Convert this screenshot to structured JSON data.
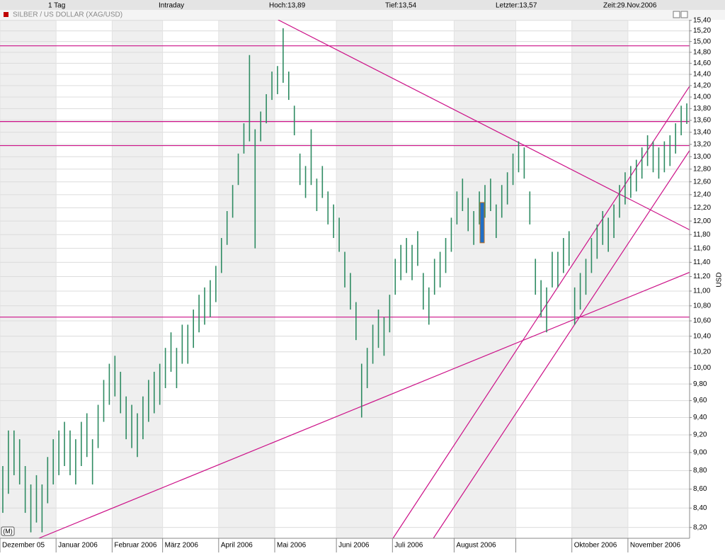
{
  "header": {
    "period": "1 Tag",
    "mode": "Intraday",
    "high": "Hoch:13,89",
    "low": "Tief:13,54",
    "last": "Letzter:13,57",
    "time": "Zeit:29.Nov.2006"
  },
  "chart_data": {
    "type": "ohlc",
    "title": "SILBER / US DOLLAR (XAG/USD)",
    "y_label": "USD",
    "corner_label": "(M)",
    "log_y": true,
    "grid": true,
    "color": "#2e8b62",
    "high": [
      8.85,
      9.25,
      9.25,
      9.15,
      8.85,
      8.65,
      8.75,
      8.65,
      8.95,
      9.15,
      9.25,
      9.35,
      9.25,
      9.15,
      9.35,
      9.45,
      9.15,
      9.55,
      9.85,
      10.05,
      10.15,
      9.95,
      9.65,
      9.55,
      9.45,
      9.65,
      9.85,
      9.95,
      10.05,
      10.25,
      10.45,
      10.25,
      10.55,
      10.55,
      10.75,
      10.95,
      11.05,
      11.15,
      11.35,
      11.75,
      12.15,
      12.55,
      13.05,
      13.55,
      14.75,
      13.45,
      13.75,
      14.05,
      14.45,
      14.55,
      15.25,
      14.45,
      13.85,
      13.05,
      12.85,
      13.45,
      12.65,
      12.85,
      12.45,
      12.25,
      12.05,
      11.55,
      11.25,
      10.85,
      10.05,
      10.25,
      10.55,
      10.75,
      10.65,
      10.95,
      11.45,
      11.65,
      11.75,
      11.65,
      11.85,
      11.25,
      11.05,
      11.45,
      11.55,
      11.75,
      12.05,
      12.45,
      12.65,
      12.35,
      12.15,
      12.45,
      12.55,
      12.65,
      12.25,
      12.55,
      12.75,
      13.05,
      13.25,
      13.15,
      12.45,
      11.45,
      11.15,
      11.05,
      11.55,
      11.55,
      11.75,
      11.85,
      11.05,
      11.25,
      11.45,
      11.75,
      11.95,
      12.15,
      12.05,
      12.25,
      12.55,
      12.75,
      12.85,
      12.95,
      13.15,
      13.35,
      13.25,
      13.15,
      13.25,
      13.35,
      13.55,
      13.85,
      13.89
    ],
    "low": [
      8.35,
      8.55,
      8.75,
      8.65,
      8.35,
      8.15,
      8.25,
      8.15,
      8.45,
      8.65,
      8.75,
      8.85,
      8.75,
      8.65,
      8.85,
      8.95,
      8.65,
      9.05,
      9.35,
      9.55,
      9.65,
      9.45,
      9.15,
      9.05,
      8.95,
      9.15,
      9.35,
      9.45,
      9.55,
      9.75,
      9.95,
      9.75,
      10.05,
      10.05,
      10.25,
      10.45,
      10.55,
      10.65,
      10.85,
      11.25,
      11.65,
      12.05,
      12.55,
      13.05,
      13.25,
      11.6,
      13.25,
      13.55,
      13.95,
      14.05,
      14.25,
      13.95,
      13.35,
      12.55,
      12.35,
      12.55,
      12.15,
      12.35,
      11.95,
      11.75,
      11.55,
      11.05,
      10.75,
      10.35,
      9.4,
      9.75,
      10.05,
      10.25,
      10.15,
      10.45,
      10.95,
      11.15,
      11.25,
      11.15,
      11.35,
      10.75,
      10.55,
      10.95,
      11.05,
      11.25,
      11.55,
      11.95,
      12.15,
      11.85,
      11.65,
      11.95,
      12.05,
      12.15,
      11.75,
      12.05,
      12.25,
      12.55,
      12.75,
      12.65,
      11.95,
      10.95,
      10.65,
      10.45,
      11.05,
      11.05,
      11.25,
      11.35,
      10.55,
      10.75,
      10.95,
      11.25,
      11.45,
      11.65,
      11.55,
      11.75,
      12.05,
      12.25,
      12.35,
      12.45,
      12.65,
      12.85,
      12.75,
      12.65,
      12.75,
      12.85,
      13.05,
      13.35,
      13.54
    ],
    "xlim": [
      0,
      123
    ],
    "xticks": [
      {
        "value": 0,
        "label": "Dezember 05"
      },
      {
        "value": 10,
        "label": "Januar 2006"
      },
      {
        "value": 20,
        "label": "Februar 2006"
      },
      {
        "value": 29,
        "label": "März 2006"
      },
      {
        "value": 39,
        "label": "April 2006"
      },
      {
        "value": 49,
        "label": "Mai 2006"
      },
      {
        "value": 60,
        "label": "Juni 2006"
      },
      {
        "value": 70,
        "label": "Juli 2006"
      },
      {
        "value": 81,
        "label": "August 2006"
      },
      {
        "value": 92,
        "label": null
      },
      {
        "value": 102,
        "label": "Oktober 2006"
      },
      {
        "value": 112,
        "label": "November 2006"
      }
    ],
    "ylim": [
      8.09,
      15.41
    ],
    "yticks": [
      {
        "value": 8.2,
        "label": "8,20"
      },
      {
        "value": 8.4,
        "label": "8,40"
      },
      {
        "value": 8.6,
        "label": "8,60"
      },
      {
        "value": 8.8,
        "label": "8,80"
      },
      {
        "value": 9,
        "label": "9,00"
      },
      {
        "value": 9.2,
        "label": "9,20"
      },
      {
        "value": 9.4,
        "label": "9,40"
      },
      {
        "value": 9.6,
        "label": "9,60"
      },
      {
        "value": 9.8,
        "label": "9,80"
      },
      {
        "value": 10,
        "label": "10,00"
      },
      {
        "value": 10.2,
        "label": "10,20"
      },
      {
        "value": 10.4,
        "label": "10,40"
      },
      {
        "value": 10.6,
        "label": "10,60"
      },
      {
        "value": 10.8,
        "label": "10,80"
      },
      {
        "value": 11,
        "label": "11,00"
      },
      {
        "value": 11.2,
        "label": "11,20"
      },
      {
        "value": 11.4,
        "label": "11,40"
      },
      {
        "value": 11.6,
        "label": "11,60"
      },
      {
        "value": 11.8,
        "label": "11,80"
      },
      {
        "value": 12,
        "label": "12,00"
      },
      {
        "value": 12.2,
        "label": "12,20"
      },
      {
        "value": 12.4,
        "label": "12,40"
      },
      {
        "value": 12.6,
        "label": "12,60"
      },
      {
        "value": 12.8,
        "label": "12,80"
      },
      {
        "value": 13,
        "label": "13,00"
      },
      {
        "value": 13.2,
        "label": "13,20"
      },
      {
        "value": 13.4,
        "label": "13,40"
      },
      {
        "value": 13.6,
        "label": "13,60"
      },
      {
        "value": 13.8,
        "label": "13,80"
      },
      {
        "value": 14,
        "label": "14,00"
      },
      {
        "value": 14.2,
        "label": "14,20"
      },
      {
        "value": 14.4,
        "label": "14,40"
      },
      {
        "value": 14.6,
        "label": "14,60"
      },
      {
        "value": 14.8,
        "label": "14,80"
      },
      {
        "value": 15,
        "label": "15,00"
      },
      {
        "value": 15.2,
        "label": "15,20"
      },
      {
        "value": 15.4,
        "label": "15,40"
      }
    ],
    "lines": {
      "color": "#cc1188",
      "horizontal": [
        14.92,
        13.58,
        13.18,
        10.65
      ],
      "trend": [
        {
          "x": [
            49.6,
            123
          ],
          "y": [
            15.41,
            11.87
          ]
        },
        {
          "x": [
            6.9,
            123
          ],
          "y": [
            8.09,
            11.26
          ]
        },
        {
          "x": [
            70.1,
            123
          ],
          "y": [
            8.09,
            14.19
          ]
        },
        {
          "x": [
            77.3,
            123
          ],
          "y": [
            8.09,
            13.1
          ]
        }
      ]
    },
    "highlight": {
      "x": 86,
      "high": 12.28,
      "low": 11.68,
      "color": "#1f6fc8"
    }
  }
}
